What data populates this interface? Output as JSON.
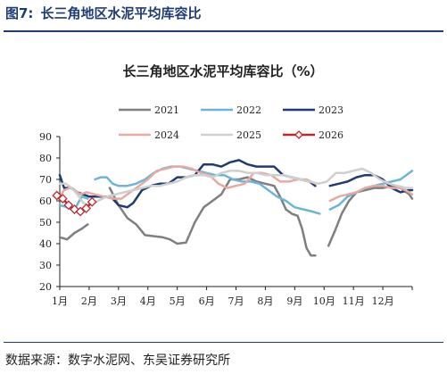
{
  "figure": {
    "label": "图7:",
    "title": "长三角地区水泥平均库容比",
    "source": "数据来源：数字水泥网、东吴证券研究所"
  },
  "colors": {
    "header": "#1f3b73",
    "2021": "#7f7f7f",
    "2022": "#6bb5d6",
    "2023": "#1f3b73",
    "2024": "#e8a9a3",
    "2025": "#cfcfcf",
    "2026": "#c0272d"
  },
  "chart_data": {
    "type": "line",
    "title": "长三角地区水泥平均库容比（%）",
    "xlabel": "",
    "ylabel": "",
    "ylim": [
      20,
      90
    ],
    "yticks": [
      20,
      30,
      40,
      50,
      60,
      70,
      80,
      90
    ],
    "xlim": [
      0,
      12
    ],
    "xticks": [
      {
        "label": "1月",
        "x": 0
      },
      {
        "label": "2月",
        "x": 1
      },
      {
        "label": "3月",
        "x": 2
      },
      {
        "label": "4月",
        "x": 3
      },
      {
        "label": "5月",
        "x": 4
      },
      {
        "label": "6月",
        "x": 5
      },
      {
        "label": "7月",
        "x": 6
      },
      {
        "label": "8月",
        "x": 7
      },
      {
        "label": "9月",
        "x": 8
      },
      {
        "label": "10月",
        "x": 9
      },
      {
        "label": "11月",
        "x": 10
      },
      {
        "label": "12月",
        "x": 11
      }
    ],
    "grid": false,
    "legend_position": "top",
    "series": [
      {
        "name": "2021",
        "color": "#7f7f7f",
        "marker": false,
        "segments": [
          [
            [
              0.0,
              43
            ],
            [
              0.25,
              42
            ],
            [
              0.5,
              45
            ],
            [
              0.75,
              47
            ],
            [
              0.95,
              49
            ]
          ],
          [
            [
              1.7,
              66
            ],
            [
              2.0,
              58
            ],
            [
              2.3,
              52
            ],
            [
              2.6,
              49
            ],
            [
              2.9,
              44
            ],
            [
              3.2,
              43.5
            ],
            [
              3.5,
              43
            ],
            [
              3.75,
              42
            ],
            [
              4.0,
              40
            ],
            [
              4.3,
              40.5
            ],
            [
              4.6,
              50
            ],
            [
              4.9,
              57
            ],
            [
              5.2,
              60
            ],
            [
              5.5,
              63
            ],
            [
              5.8,
              70
            ],
            [
              6.1,
              70
            ],
            [
              6.4,
              71
            ],
            [
              6.7,
              69
            ],
            [
              7.0,
              68
            ],
            [
              7.3,
              67
            ],
            [
              7.5,
              62
            ],
            [
              7.7,
              56
            ],
            [
              7.9,
              54
            ],
            [
              8.1,
              53
            ],
            [
              8.25,
              47
            ],
            [
              8.4,
              38
            ],
            [
              8.55,
              34.5
            ],
            [
              8.7,
              34.5
            ]
          ],
          [
            [
              9.15,
              39
            ],
            [
              9.4,
              47
            ],
            [
              9.6,
              54
            ],
            [
              9.85,
              60
            ],
            [
              10.1,
              64
            ],
            [
              10.4,
              65
            ],
            [
              10.7,
              66
            ],
            [
              11.0,
              66
            ],
            [
              11.3,
              67
            ],
            [
              11.6,
              66
            ],
            [
              11.9,
              63
            ],
            [
              12.0,
              61
            ]
          ]
        ]
      },
      {
        "name": "2022",
        "color": "#6bb5d6",
        "marker": false,
        "segments": [
          [
            [
              0.0,
              58
            ],
            [
              0.25,
              57
            ],
            [
              0.5,
              56
            ],
            [
              0.75,
              62
            ],
            [
              0.95,
              61
            ]
          ],
          [
            [
              1.2,
              70
            ],
            [
              1.4,
              71
            ],
            [
              1.6,
              71
            ],
            [
              1.8,
              68
            ],
            [
              2.0,
              67
            ],
            [
              2.3,
              67
            ],
            [
              2.6,
              68
            ],
            [
              2.9,
              70
            ],
            [
              3.2,
              73
            ],
            [
              3.5,
              75
            ],
            [
              3.8,
              76
            ],
            [
              4.1,
              76
            ],
            [
              4.4,
              75
            ],
            [
              4.7,
              74
            ],
            [
              5.0,
              73
            ],
            [
              5.3,
              72
            ],
            [
              5.6,
              72
            ],
            [
              5.9,
              70
            ],
            [
              6.2,
              69
            ],
            [
              6.5,
              69
            ],
            [
              6.8,
              68
            ],
            [
              7.1,
              65
            ],
            [
              7.4,
              62
            ],
            [
              7.7,
              60
            ],
            [
              8.0,
              57
            ],
            [
              8.3,
              56
            ],
            [
              8.6,
              55
            ],
            [
              8.85,
              54
            ]
          ],
          [
            [
              9.2,
              56
            ],
            [
              9.5,
              58
            ],
            [
              9.8,
              62
            ],
            [
              10.1,
              64
            ],
            [
              10.4,
              66
            ],
            [
              10.7,
              67
            ],
            [
              11.0,
              68
            ],
            [
              11.3,
              69
            ],
            [
              11.6,
              70
            ],
            [
              11.9,
              73
            ],
            [
              12.0,
              74
            ]
          ]
        ]
      },
      {
        "name": "2023",
        "color": "#1f3b73",
        "marker": false,
        "segments": [
          [
            [
              0.0,
              72
            ],
            [
              0.15,
              66
            ],
            [
              0.4,
              66
            ],
            [
              0.6,
              64
            ],
            [
              0.8,
              63
            ],
            [
              1.0,
              62
            ],
            [
              1.3,
              62
            ],
            [
              1.6,
              62
            ],
            [
              1.8,
              61
            ],
            [
              2.0,
              58
            ],
            [
              2.3,
              57
            ],
            [
              2.5,
              59
            ],
            [
              2.8,
              65
            ],
            [
              3.1,
              67
            ],
            [
              3.4,
              68
            ],
            [
              3.7,
              68
            ],
            [
              4.0,
              71
            ],
            [
              4.3,
              71
            ],
            [
              4.6,
              72
            ],
            [
              4.9,
              77
            ],
            [
              5.2,
              77
            ],
            [
              5.5,
              76
            ],
            [
              5.8,
              78
            ],
            [
              6.1,
              79
            ],
            [
              6.4,
              77
            ],
            [
              6.7,
              76
            ],
            [
              7.0,
              76
            ],
            [
              7.3,
              76
            ],
            [
              7.6,
              72
            ],
            [
              7.9,
              71
            ],
            [
              8.2,
              70
            ],
            [
              8.5,
              69
            ],
            [
              8.7,
              67
            ]
          ],
          [
            [
              9.2,
              67
            ],
            [
              9.5,
              68
            ],
            [
              9.8,
              69
            ],
            [
              10.1,
              71
            ],
            [
              10.4,
              72
            ],
            [
              10.7,
              72
            ],
            [
              11.0,
              70
            ],
            [
              11.3,
              66
            ],
            [
              11.6,
              64
            ],
            [
              11.9,
              65
            ],
            [
              12.0,
              65
            ]
          ]
        ]
      },
      {
        "name": "2024",
        "color": "#e8a9a3",
        "marker": false,
        "segments": [
          [
            [
              0.0,
              62
            ],
            [
              0.15,
              65
            ],
            [
              0.35,
              66
            ],
            [
              0.5,
              65
            ],
            [
              0.7,
              63
            ],
            [
              0.9,
              64
            ],
            [
              1.2,
              63
            ],
            [
              1.5,
              62
            ],
            [
              1.8,
              61
            ],
            [
              2.1,
              61
            ],
            [
              2.4,
              64
            ],
            [
              2.7,
              67
            ],
            [
              3.0,
              70
            ],
            [
              3.3,
              74
            ],
            [
              3.6,
              75
            ],
            [
              3.9,
              76
            ],
            [
              4.2,
              76
            ],
            [
              4.5,
              75
            ],
            [
              4.8,
              73
            ],
            [
              5.1,
              72
            ],
            [
              5.4,
              68
            ],
            [
              5.7,
              66
            ],
            [
              6.0,
              67
            ],
            [
              6.3,
              68
            ],
            [
              6.6,
              73
            ],
            [
              6.9,
              73
            ],
            [
              7.2,
              72
            ],
            [
              7.5,
              69
            ],
            [
              7.8,
              69
            ],
            [
              8.1,
              70
            ],
            [
              8.4,
              70
            ],
            [
              8.7,
              68
            ]
          ],
          [
            [
              9.2,
              60
            ],
            [
              9.5,
              62
            ],
            [
              9.8,
              63
            ],
            [
              10.1,
              64
            ],
            [
              10.4,
              66
            ],
            [
              10.7,
              67
            ],
            [
              11.0,
              67
            ],
            [
              11.3,
              66
            ],
            [
              11.6,
              66
            ],
            [
              11.9,
              64
            ],
            [
              12.0,
              63
            ]
          ]
        ]
      },
      {
        "name": "2025",
        "color": "#cfcfcf",
        "marker": false,
        "segments": [
          [
            [
              0.0,
              68
            ],
            [
              0.2,
              68
            ],
            [
              0.4,
              66
            ],
            [
              0.6,
              63
            ],
            [
              0.8,
              59
            ],
            [
              1.0,
              58
            ],
            [
              1.3,
              60
            ],
            [
              1.6,
              62
            ],
            [
              1.9,
              63
            ],
            [
              2.2,
              64
            ],
            [
              2.5,
              65
            ],
            [
              2.8,
              66
            ],
            [
              3.1,
              67
            ],
            [
              3.4,
              67
            ],
            [
              3.7,
              68
            ],
            [
              4.0,
              69
            ],
            [
              4.3,
              71
            ],
            [
              4.6,
              72
            ],
            [
              4.9,
              72
            ],
            [
              5.2,
              71
            ],
            [
              5.5,
              73
            ],
            [
              5.8,
              74
            ],
            [
              6.1,
              74
            ],
            [
              6.4,
              73
            ],
            [
              6.7,
              73
            ],
            [
              7.0,
              72
            ],
            [
              7.3,
              72
            ],
            [
              7.6,
              72
            ],
            [
              7.9,
              71
            ],
            [
              8.2,
              70
            ],
            [
              8.5,
              69
            ],
            [
              8.8,
              68
            ],
            [
              9.1,
              69
            ],
            [
              9.4,
              73
            ],
            [
              9.7,
              73
            ],
            [
              10.0,
              74
            ],
            [
              10.3,
              75
            ],
            [
              10.6,
              73
            ],
            [
              10.9,
              70
            ],
            [
              11.2,
              68
            ],
            [
              11.5,
              67
            ],
            [
              11.8,
              66
            ],
            [
              12.0,
              66
            ]
          ]
        ]
      },
      {
        "name": "2026",
        "color": "#c0272d",
        "marker": true,
        "segments": [
          [
            [
              -0.1,
              62.5
            ],
            [
              0.1,
              61
            ],
            [
              0.3,
              58
            ],
            [
              0.5,
              56
            ],
            [
              0.7,
              55
            ],
            [
              0.9,
              56.5
            ],
            [
              1.1,
              59.5
            ]
          ]
        ]
      }
    ]
  }
}
